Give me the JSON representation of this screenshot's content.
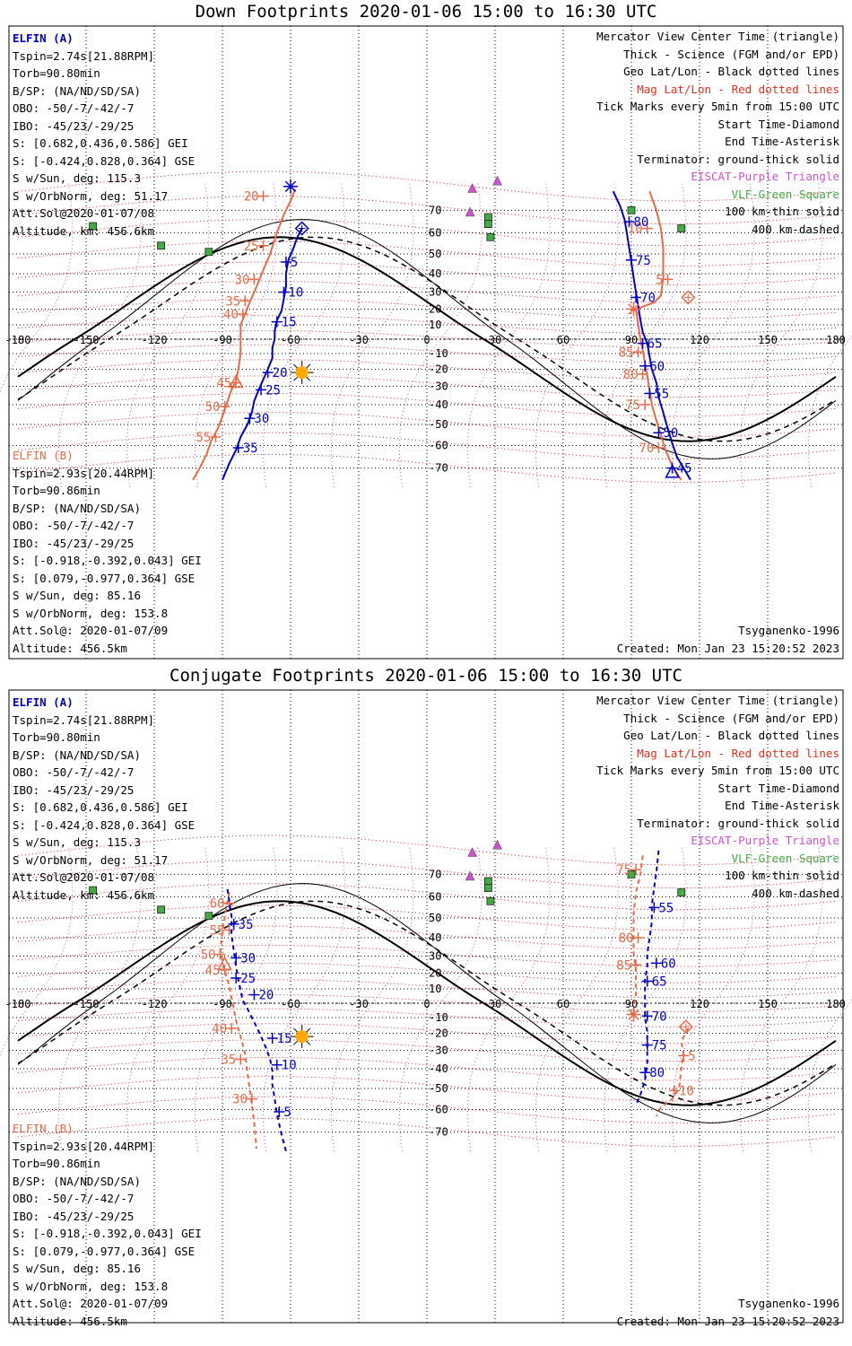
{
  "panels": [
    {
      "id": "down",
      "title": "Down Footprints 2020-01-06 15:00 to 16:30 UTC",
      "elfin_a": {
        "name": "ELFIN (A)",
        "lines": [
          "Tspin=2.74s[21.88RPM]",
          "Torb=90.80min",
          "B/SP: (NA/ND/SD/SA)",
          "OBO: -50/-7/-42/-7",
          "IBO: -45/23/-29/25",
          "S: [0.682,0.436,0.586] GEI",
          "S: [-0.424,0.828,0.364] GSE",
          "S w/Sun, deg: 115.3",
          "S w/OrbNorm, deg: 51.17",
          "Att.Sol@2020-01-07/08",
          "Altitude, km: 456.6km"
        ]
      },
      "elfin_b": {
        "name": "ELFIN (B)",
        "lines": [
          "Tspin=2.93s[20.44RPM]",
          "Torb=90.86min",
          "B/SP: (NA/ND/SD/SA)",
          "OBO: -50/-7/-42/-7",
          "IBO: -45/23/-29/25",
          "S: [-0.918,-0.392,0.043] GEI",
          "S: [0.079,-0.977,0.364] GSE",
          "S w/Sun, deg: 85.16",
          "S w/OrbNorm, deg: 153.8",
          "Att.Sol@: 2020-01-07/09",
          "Altitude: 456.5km"
        ]
      },
      "model": "Tsyganenko-1996",
      "created": "Created: Mon Jan 23 15:20:52 2023"
    },
    {
      "id": "conjugate",
      "title": "Conjugate Footprints 2020-01-06 15:00 to 16:30 UTC",
      "elfin_a": {
        "name": "ELFIN (A)",
        "lines": [
          "Tspin=2.74s[21.88RPM]",
          "Torb=90.80min",
          "B/SP: (NA/ND/SD/SA)",
          "OBO: -50/-7/-42/-7",
          "IBO: -45/23/-29/25",
          "S: [0.682,0.436,0.586] GEI",
          "S: [-0.424,0.828,0.364] GSE",
          "S w/Sun, deg: 115.3",
          "S w/OrbNorm, deg: 51.17",
          "Att.Sol@2020-01-07/08",
          "Altitude, km: 456.6km"
        ]
      },
      "elfin_b": {
        "name": "ELFIN (B)",
        "lines": [
          "Tspin=2.93s[20.44RPM]",
          "Torb=90.86min",
          "B/SP: (NA/ND/SD/SA)",
          "OBO: -50/-7/-42/-7",
          "IBO: -45/23/-29/25",
          "S: [-0.918,-0.392,0.043] GEI",
          "S: [0.079,-0.977,0.364] GSE",
          "S w/Sun, deg: 85.16",
          "S w/OrbNorm, deg: 153.8",
          "Att.Sol@: 2020-01-07/09",
          "Altitude: 456.5km"
        ]
      },
      "model": "Tsyganenko-1996",
      "created": "Created: Mon Jan 23 15:20:52 2023"
    }
  ],
  "legend": [
    {
      "text": "Mercator View Center Time (triangle)",
      "color": "#000000"
    },
    {
      "text": "Thick - Science (FGM and/or EPD)",
      "color": "#000000"
    },
    {
      "text": "Geo Lat/Lon - Black dotted lines",
      "color": "#000000"
    },
    {
      "text": "Mag Lat/Lon - Red dotted lines",
      "color": "#e03020"
    },
    {
      "text": "Tick Marks every 5min from 15:00 UTC",
      "color": "#000000"
    },
    {
      "text": "Start Time-Diamond",
      "color": "#000000"
    },
    {
      "text": "End Time-Asterisk",
      "color": "#000000"
    },
    {
      "text": "Terminator: ground-thick solid",
      "color": "#000000"
    },
    {
      "text": "EISCAT-Purple Triangle",
      "color": "#cc55cc"
    },
    {
      "text": "VLF-Green Square",
      "color": "#44aa44"
    },
    {
      "text": "100 km-thin solid",
      "color": "#000000"
    },
    {
      "text": "400 km-dashed",
      "color": "#000000"
    }
  ],
  "axes": {
    "lon_ticks": [
      "-180",
      "-150",
      "-120",
      "-90",
      "-60",
      "-30",
      "0",
      "30",
      "60",
      "90",
      "120",
      "150",
      "180"
    ],
    "lat_ticks": [
      "70",
      "60",
      "50",
      "40",
      "30",
      "20",
      "10",
      "-10",
      "-20",
      "-30",
      "-40",
      "-50",
      "-60",
      "-70"
    ],
    "lon_range": [
      -180,
      180
    ],
    "lat_range": [
      -78,
      82
    ]
  },
  "colors": {
    "elfin_a": "#0000cc",
    "elfin_b": "#e8694a",
    "mag_grid": "#dd2222",
    "geo_grid": "#000000",
    "violet": "#cc55cc",
    "green": "#44aa44",
    "sun": "#ffaa00"
  },
  "stations": {
    "eiscat": [
      [
        20,
        79
      ],
      [
        19,
        69
      ],
      [
        31,
        82
      ]
    ],
    "vlf": [
      [
        -147,
        63
      ],
      [
        -117,
        54
      ],
      [
        -96,
        51
      ],
      [
        27,
        67
      ],
      [
        27,
        64
      ],
      [
        28,
        58
      ],
      [
        90,
        70
      ],
      [
        112,
        62
      ]
    ]
  },
  "sun": {
    "lon": -55,
    "lat": -22
  },
  "down": {
    "a": {
      "track": [
        [
          -55,
          62
        ],
        [
          -57,
          58
        ],
        [
          -59,
          52
        ],
        [
          -61,
          47
        ],
        [
          -62,
          40
        ],
        [
          -62,
          33
        ],
        [
          -63,
          26
        ],
        [
          -64,
          19
        ],
        [
          -66,
          13
        ],
        [
          -67,
          6
        ],
        [
          -67,
          0
        ],
        [
          -68,
          -6
        ],
        [
          -68,
          -13
        ],
        [
          -70,
          -20
        ],
        [
          -72,
          -26
        ],
        [
          -74,
          -32
        ],
        [
          -76,
          -38
        ],
        [
          -77,
          -44
        ],
        [
          -79,
          -50
        ],
        [
          -82,
          -56
        ],
        [
          -84,
          -62
        ],
        [
          -87,
          -68
        ],
        [
          -90,
          -75
        ]
      ],
      "ticks": [
        {
          "label": "5",
          "lon": -62,
          "lat": 46
        },
        {
          "label": "10",
          "lon": -63,
          "lat": 30
        },
        {
          "label": "15",
          "lon": -66,
          "lat": 12
        },
        {
          "label": "20",
          "lon": -70,
          "lat": -22
        },
        {
          "label": "25",
          "lon": -73,
          "lat": -32
        },
        {
          "label": "30",
          "lon": -78,
          "lat": -47
        },
        {
          "label": "35",
          "lon": -83,
          "lat": -61
        }
      ],
      "start": {
        "lon": -55,
        "lat": 62
      },
      "end": {
        "lon": -60,
        "lat": 80
      }
    },
    "a_right": {
      "track": [
        [
          82,
          78
        ],
        [
          85,
          72
        ],
        [
          87,
          66
        ],
        [
          88,
          60
        ],
        [
          89,
          53
        ],
        [
          90,
          46
        ],
        [
          91,
          38
        ],
        [
          92,
          30
        ],
        [
          93,
          22
        ],
        [
          94,
          13
        ],
        [
          95,
          5
        ],
        [
          97,
          -3
        ],
        [
          98,
          -12
        ],
        [
          99,
          -20
        ],
        [
          101,
          -28
        ],
        [
          102,
          -36
        ],
        [
          104,
          -44
        ],
        [
          106,
          -52
        ],
        [
          108,
          -59
        ],
        [
          110,
          -65
        ],
        [
          113,
          -70
        ],
        [
          116,
          -75
        ]
      ],
      "ticks": [
        {
          "label": "80",
          "lon": 89,
          "lat": 65
        },
        {
          "label": "75",
          "lon": 90,
          "lat": 47
        },
        {
          "label": "70",
          "lon": 92,
          "lat": 27
        },
        {
          "label": "65",
          "lon": 95,
          "lat": -3
        },
        {
          "label": "60",
          "lon": 96,
          "lat": -18
        },
        {
          "label": "55",
          "lon": 98,
          "lat": -34
        },
        {
          "label": "50",
          "lon": 102,
          "lat": -54
        },
        {
          "label": "45",
          "lon": 108,
          "lat": -70
        }
      ],
      "end_triangle": {
        "lon": 108,
        "lat": -72
      }
    },
    "b": {
      "track": [
        [
          -58,
          79
        ],
        [
          -60,
          74
        ],
        [
          -63,
          68
        ],
        [
          -66,
          60
        ],
        [
          -69,
          50
        ],
        [
          -72,
          42
        ],
        [
          -75,
          33
        ],
        [
          -78,
          24
        ],
        [
          -80,
          17
        ],
        [
          -82,
          10
        ],
        [
          -82,
          0
        ],
        [
          -82,
          -10
        ],
        [
          -83,
          -20
        ],
        [
          -84,
          -27
        ],
        [
          -86,
          -32
        ],
        [
          -88,
          -39
        ],
        [
          -90,
          -46
        ],
        [
          -92,
          -52
        ],
        [
          -95,
          -58
        ],
        [
          -97,
          -64
        ],
        [
          -100,
          -70
        ],
        [
          -103,
          -75
        ]
      ],
      "ticks": [
        {
          "label": "20",
          "lon": -72,
          "lat": 76
        },
        {
          "label": "25",
          "lon": -72,
          "lat": 54
        },
        {
          "label": "30",
          "lon": -76,
          "lat": 37
        },
        {
          "label": "35",
          "lon": -80,
          "lat": 25
        },
        {
          "label": "40",
          "lon": -81,
          "lat": 17
        },
        {
          "label": "45",
          "lon": -84,
          "lat": -28
        },
        {
          "label": "50",
          "lon": -89,
          "lat": -41
        },
        {
          "label": "55",
          "lon": -93,
          "lat": -56
        }
      ],
      "mid_triangle": {
        "lon": -84,
        "lat": -28
      }
    },
    "b_right": {
      "track": [
        [
          98,
          78
        ],
        [
          101,
          70
        ],
        [
          103,
          62
        ],
        [
          104,
          53
        ],
        [
          104,
          46
        ],
        [
          104,
          38
        ],
        [
          103,
          28
        ],
        [
          100,
          24
        ],
        [
          92,
          20
        ],
        [
          93,
          10
        ],
        [
          94,
          0
        ],
        [
          95,
          -8
        ],
        [
          96,
          -16
        ],
        [
          97,
          -24
        ],
        [
          98,
          -32
        ],
        [
          99,
          -40
        ],
        [
          101,
          -48
        ],
        [
          103,
          -55
        ],
        [
          105,
          -62
        ],
        [
          108,
          -69
        ],
        [
          112,
          -75
        ]
      ],
      "ticks": [
        {
          "label": "10",
          "lon": 97,
          "lat": 62
        },
        {
          "label": "5",
          "lon": 106,
          "lat": 37
        },
        {
          "label": "85",
          "lon": 93,
          "lat": -9
        },
        {
          "label": "80",
          "lon": 95,
          "lat": -23
        },
        {
          "label": "75",
          "lon": 96,
          "lat": -40
        },
        {
          "label": "70",
          "lon": 102,
          "lat": -61
        }
      ],
      "start": {
        "lon": 115,
        "lat": 27
      },
      "end": {
        "lon": 91,
        "lat": 20
      }
    }
  },
  "conj": {
    "a": {
      "track": [
        [
          -62,
          -78
        ],
        [
          -64,
          -71
        ],
        [
          -66,
          -62
        ],
        [
          -67,
          -55
        ],
        [
          -68,
          -48
        ],
        [
          -68,
          -41
        ],
        [
          -69,
          -35
        ],
        [
          -71,
          -28
        ],
        [
          -73,
          -22
        ],
        [
          -75,
          -16
        ],
        [
          -77,
          -10
        ],
        [
          -79,
          -4
        ],
        [
          -81,
          2
        ],
        [
          -82,
          9
        ],
        [
          -83,
          16
        ],
        [
          -84,
          24
        ],
        [
          -85,
          33
        ],
        [
          -86,
          42
        ],
        [
          -86,
          51
        ],
        [
          -87,
          58
        ],
        [
          -88,
          65
        ]
      ],
      "ticks": [
        {
          "label": "5",
          "lon": -65,
          "lat": -61
        },
        {
          "label": "10",
          "lon": -66,
          "lat": -38
        },
        {
          "label": "15",
          "lon": -68,
          "lat": -23
        },
        {
          "label": "20",
          "lon": -76,
          "lat": 6
        },
        {
          "label": "25",
          "lon": -84,
          "lat": 17
        },
        {
          "label": "30",
          "lon": -84,
          "lat": 29
        },
        {
          "label": "35",
          "lon": -85,
          "lat": 47
        }
      ]
    },
    "a_right": {
      "track": [
        [
          102,
          80
        ],
        [
          101,
          71
        ],
        [
          100,
          64
        ],
        [
          99,
          56
        ],
        [
          99,
          48
        ],
        [
          98,
          40
        ],
        [
          97,
          31
        ],
        [
          97,
          24
        ],
        [
          96,
          16
        ],
        [
          96,
          8
        ],
        [
          96,
          -1
        ],
        [
          96,
          -10
        ],
        [
          97,
          -19
        ],
        [
          97,
          -28
        ],
        [
          97,
          -37
        ],
        [
          96,
          -46
        ],
        [
          94,
          -53
        ],
        [
          92,
          -58
        ]
      ],
      "ticks": [
        {
          "label": "55",
          "lon": 100,
          "lat": 55
        },
        {
          "label": "60",
          "lon": 101,
          "lat": 26
        },
        {
          "label": "65",
          "lon": 97,
          "lat": 15
        },
        {
          "label": "70",
          "lon": 97,
          "lat": -9
        },
        {
          "label": "75",
          "lon": 97,
          "lat": -27
        },
        {
          "label": "80",
          "lon": 96,
          "lat": -42
        }
      ]
    },
    "b": {
      "track": [
        [
          -87,
          62
        ],
        [
          -88,
          57
        ],
        [
          -89,
          50
        ],
        [
          -90,
          43
        ],
        [
          -91,
          33
        ],
        [
          -89,
          22
        ],
        [
          -87,
          12
        ],
        [
          -86,
          4
        ],
        [
          -85,
          -4
        ],
        [
          -84,
          -12
        ],
        [
          -82,
          -22
        ],
        [
          -80,
          -32
        ],
        [
          -79,
          -42
        ],
        [
          -78,
          -50
        ],
        [
          -77,
          -58
        ],
        [
          -76,
          -66
        ],
        [
          -75,
          -77
        ]
      ],
      "ticks": [
        {
          "label": "60",
          "lon": -87,
          "lat": 57
        },
        {
          "label": "55",
          "lon": -87,
          "lat": 44
        },
        {
          "label": "50",
          "lon": -91,
          "lat": 31
        },
        {
          "label": "45",
          "lon": -89,
          "lat": 22
        },
        {
          "label": "40",
          "lon": -86,
          "lat": -17
        },
        {
          "label": "35",
          "lon": -82,
          "lat": -35
        },
        {
          "label": "30",
          "lon": -77,
          "lat": -55
        }
      ],
      "mid_triangle": {
        "lon": -89,
        "lat": 25
      }
    },
    "b_right": {
      "track": [
        [
          95,
          78
        ],
        [
          94,
          70
        ],
        [
          92,
          62
        ],
        [
          91,
          52
        ],
        [
          91,
          42
        ],
        [
          91,
          32
        ],
        [
          92,
          22
        ],
        [
          92,
          14
        ],
        [
          92,
          6
        ],
        [
          91,
          -2
        ],
        [
          91,
          -8
        ]
      ],
      "ticks": [
        {
          "label": "75",
          "lon": 92,
          "lat": 72
        },
        {
          "label": "80",
          "lon": 93,
          "lat": 40
        },
        {
          "label": "85",
          "lon": 92,
          "lat": 25
        }
      ],
      "lower": [
        [
          115,
          -17
        ],
        [
          112,
          -25
        ],
        [
          113,
          -32
        ],
        [
          112,
          -40
        ],
        [
          111,
          -50
        ],
        [
          108,
          -55
        ],
        [
          103,
          -59
        ],
        [
          101,
          -63
        ]
      ],
      "lower_ticks": [
        {
          "label": "5",
          "lon": 113,
          "lat": -33
        },
        {
          "label": "10",
          "lon": 109,
          "lat": -51
        }
      ],
      "start": {
        "lon": 114,
        "lat": -16
      },
      "end": {
        "lon": 91,
        "lat": -8
      }
    }
  }
}
